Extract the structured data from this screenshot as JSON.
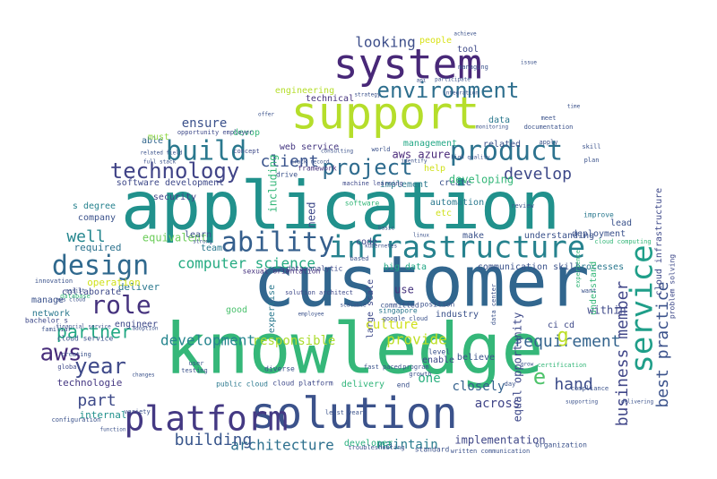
{
  "palette": {
    "background": "#ffffff",
    "colors": [
      "#440154",
      "#46327e",
      "#365c8d",
      "#277f8e",
      "#1fa187",
      "#4ac16d",
      "#a0da39",
      "#fde725"
    ]
  },
  "words": [
    {
      "text": "customer",
      "color": "#31668e",
      "rotate": 0
    },
    {
      "text": "knowledge",
      "color": "#35b779",
      "rotate": 0
    },
    {
      "text": "application",
      "color": "#21918c",
      "rotate": 0
    },
    {
      "text": "support",
      "color": "#b5de2b",
      "rotate": 0
    },
    {
      "text": "solution",
      "color": "#3b528b",
      "rotate": 0
    },
    {
      "text": "system",
      "color": "#482878",
      "rotate": 0
    },
    {
      "text": "platform",
      "color": "#443983",
      "rotate": 0
    },
    {
      "text": "infrastructure",
      "color": "#26828e",
      "rotate": 0
    },
    {
      "text": "service",
      "color": "#1f9e89",
      "rotate": -90
    },
    {
      "text": "build",
      "color": "#2a788e",
      "rotate": 0
    },
    {
      "text": "product",
      "color": "#2c728e",
      "rotate": 0
    },
    {
      "text": "design",
      "color": "#30698e",
      "rotate": 0
    },
    {
      "text": "ability",
      "color": "#355f8d",
      "rotate": 0
    },
    {
      "text": "role",
      "color": "#46337e",
      "rotate": 0
    },
    {
      "text": "technology",
      "color": "#414487",
      "rotate": 0
    },
    {
      "text": "environment",
      "color": "#2e6f8e",
      "rotate": 0
    },
    {
      "text": "project",
      "color": "#2f6c8e",
      "rotate": 0
    },
    {
      "text": "aws",
      "color": "#472c7a",
      "rotate": 0
    },
    {
      "text": "year",
      "color": "#3e4989",
      "rotate": 0
    },
    {
      "text": "business member",
      "color": "#404688",
      "rotate": -90
    },
    {
      "text": "best practice",
      "color": "#3b528b",
      "rotate": -90
    },
    {
      "text": "partner",
      "color": "#22a884",
      "rotate": 0
    },
    {
      "text": "development",
      "color": "#25858e",
      "rotate": 0
    },
    {
      "text": "architecture",
      "color": "#2d708e",
      "rotate": 0
    },
    {
      "text": "building",
      "color": "#39568c",
      "rotate": 0
    },
    {
      "text": "requirement",
      "color": "#33638d",
      "rotate": 0
    },
    {
      "text": "develop",
      "color": "#3e4989",
      "rotate": 0
    },
    {
      "text": "computer science",
      "color": "#25ab82",
      "rotate": 0
    },
    {
      "text": "provide",
      "color": "#bddf26",
      "rotate": 0
    },
    {
      "text": "responsible",
      "color": "#addc30",
      "rotate": 0
    },
    {
      "text": "looking",
      "color": "#3d4e8a",
      "rotate": 0
    },
    {
      "text": "hand",
      "color": "#3d4d8a",
      "rotate": 0
    },
    {
      "text": "well",
      "color": "#24868e",
      "rotate": 0
    },
    {
      "text": "part",
      "color": "#3e4a89",
      "rotate": 0
    },
    {
      "text": "client",
      "color": "#3a548c",
      "rotate": 0
    },
    {
      "text": "ensure",
      "color": "#3b518b",
      "rotate": 0
    },
    {
      "text": "one",
      "color": "#2ab07f",
      "rotate": 0
    },
    {
      "text": "e",
      "color": "#4ec36b",
      "rotate": 0
    },
    {
      "text": "g",
      "color": "#bddf26",
      "rotate": 0
    },
    {
      "text": "aws azure",
      "color": "#482878",
      "rotate": 0
    },
    {
      "text": "web service",
      "color": "#453781",
      "rotate": 0
    },
    {
      "text": "management",
      "color": "#22a785",
      "rotate": 0
    },
    {
      "text": "closely",
      "color": "#34618d",
      "rotate": 0
    },
    {
      "text": "across",
      "color": "#404588",
      "rotate": 0
    },
    {
      "text": "implementation",
      "color": "#3f4788",
      "rotate": 0
    },
    {
      "text": "maintain",
      "color": "#287c8e",
      "rotate": 0
    },
    {
      "text": "developer",
      "color": "#2ab07f",
      "rotate": 0
    },
    {
      "text": "delivery",
      "color": "#31b57b",
      "rotate": 0
    },
    {
      "text": "cloud platform",
      "color": "#3e4989",
      "rotate": 0
    },
    {
      "text": "public cloud",
      "color": "#2a788e",
      "rotate": 0
    },
    {
      "text": "technologie",
      "color": "#453882",
      "rotate": 0
    },
    {
      "text": "internal",
      "color": "#21918c",
      "rotate": 0
    },
    {
      "text": "deliver",
      "color": "#2a788e",
      "rotate": 0
    },
    {
      "text": "operation",
      "color": "#d0e11c",
      "rotate": 0
    },
    {
      "text": "required",
      "color": "#2c728e",
      "rotate": 0
    },
    {
      "text": "company",
      "color": "#3b528b",
      "rotate": 0
    },
    {
      "text": "s degree",
      "color": "#26828e",
      "rotate": 0
    },
    {
      "text": "equivalent",
      "color": "#6ccd5a",
      "rotate": 0
    },
    {
      "text": "software development",
      "color": "#3e4989",
      "rotate": 0
    },
    {
      "text": "security",
      "color": "#404588",
      "rotate": 0
    },
    {
      "text": "able",
      "color": "#31668e",
      "rotate": 0
    },
    {
      "text": "must",
      "color": "#90d743",
      "rotate": 0
    },
    {
      "text": "devop",
      "color": "#35b779",
      "rotate": 0
    },
    {
      "text": "engineering",
      "color": "#b5de2b",
      "rotate": 0
    },
    {
      "text": "technical",
      "color": "#46337e",
      "rotate": 0
    },
    {
      "text": "people",
      "color": "#d8e219",
      "rotate": 0
    },
    {
      "text": "tool",
      "color": "#3e4a89",
      "rotate": 0
    },
    {
      "text": "data",
      "color": "#2a788e",
      "rotate": 0
    },
    {
      "text": "related",
      "color": "#3b528b",
      "rotate": 0
    },
    {
      "text": "help",
      "color": "#d0e11c",
      "rotate": 0
    },
    {
      "text": "create",
      "color": "#3b528b",
      "rotate": 0
    },
    {
      "text": "developing",
      "color": "#35b779",
      "rotate": 0
    },
    {
      "text": "automation",
      "color": "#2a788e",
      "rotate": 0
    },
    {
      "text": "implement",
      "color": "#2a788e",
      "rotate": 0
    },
    {
      "text": "etc",
      "color": "#d0e11c",
      "rotate": 0
    },
    {
      "text": "make",
      "color": "#3b528b",
      "rotate": 0
    },
    {
      "text": "understanding",
      "color": "#3b528b",
      "rotate": 0
    },
    {
      "text": "deployment",
      "color": "#3b528b",
      "rotate": 0
    },
    {
      "text": "lead",
      "color": "#3b528b",
      "rotate": 0
    },
    {
      "text": "improve",
      "color": "#2a788e",
      "rotate": 0
    },
    {
      "text": "communication skill",
      "color": "#3b528b",
      "rotate": 0
    },
    {
      "text": "processes",
      "color": "#2a788e",
      "rotate": 0
    },
    {
      "text": "big data",
      "color": "#22a785",
      "rotate": 0
    },
    {
      "text": "use",
      "color": "#46337e",
      "rotate": 0
    },
    {
      "text": "industry",
      "color": "#3b528b",
      "rotate": 0
    },
    {
      "text": "within",
      "color": "#3e4989",
      "rotate": 0
    },
    {
      "text": "engineer",
      "color": "#3e4989",
      "rotate": 0
    },
    {
      "text": "good",
      "color": "#4ac16d",
      "rotate": 0
    },
    {
      "text": "collaborate",
      "color": "#3e4989",
      "rotate": 0
    },
    {
      "text": "network",
      "color": "#2a788e",
      "rotate": 0
    },
    {
      "text": "manage",
      "color": "#3b528b",
      "rotate": 0
    },
    {
      "text": "learn",
      "color": "#3b528b",
      "rotate": 0
    },
    {
      "text": "team",
      "color": "#2a788e",
      "rotate": 0
    },
    {
      "text": "data analytic",
      "color": "#3e4989",
      "rotate": 0
    },
    {
      "text": "expertise",
      "color": "#2a788e",
      "rotate": -90
    },
    {
      "text": "including",
      "color": "#35b779",
      "rotate": -90
    },
    {
      "text": "need",
      "color": "#3e4989",
      "rotate": -90
    },
    {
      "text": "code",
      "color": "#3e4989",
      "rotate": 0
    },
    {
      "text": "framework",
      "color": "#46337e",
      "rotate": 0
    },
    {
      "text": "drive",
      "color": "#3b528b",
      "rotate": 0
    },
    {
      "text": "concept",
      "color": "#3e4989",
      "rotate": 0
    },
    {
      "text": "cloud service",
      "color": "#3b528b",
      "rotate": 0
    },
    {
      "text": "equal opportunity",
      "color": "#3e4989",
      "rotate": -90
    },
    {
      "text": "ci cd",
      "color": "#3e4989",
      "rotate": 0
    },
    {
      "text": "understand",
      "color": "#35b779",
      "rotate": -90
    },
    {
      "text": "large scale",
      "color": "#3e4989",
      "rotate": -90
    },
    {
      "text": "believe",
      "color": "#3b528b",
      "rotate": 0
    },
    {
      "text": "enable",
      "color": "#3e4989",
      "rotate": 0
    },
    {
      "text": "end",
      "color": "#3b528b",
      "rotate": 0
    },
    {
      "text": "culture",
      "color": "#d0e11c",
      "rotate": 0
    },
    {
      "text": "committed",
      "color": "#3b528b",
      "rotate": 0
    },
    {
      "text": "singapore",
      "color": "#2a788e",
      "rotate": 0
    },
    {
      "text": "opportunity employer",
      "color": "#3e4989",
      "rotate": 0
    },
    {
      "text": "sexual orientation",
      "color": "#46337e",
      "rotate": 0
    },
    {
      "text": "solution architect",
      "color": "#3e4989",
      "rotate": 0
    },
    {
      "text": "machine learning",
      "color": "#3e4989",
      "rotate": 0
    },
    {
      "text": "cloud infrastructure",
      "color": "#3e4989",
      "rotate": -90
    },
    {
      "text": "problem solving",
      "color": "#3e4989",
      "rotate": -90
    },
    {
      "text": "experience",
      "color": "#35b779",
      "rotate": -90
    },
    {
      "text": "software",
      "color": "#35b779",
      "rotate": 0
    },
    {
      "text": "position",
      "color": "#3b528b",
      "rotate": 0
    },
    {
      "text": "level",
      "color": "#3b528b",
      "rotate": 0
    },
    {
      "text": "creating",
      "color": "#3b528b",
      "rotate": 0
    },
    {
      "text": "global",
      "color": "#3e4989",
      "rotate": 0
    },
    {
      "text": "database",
      "color": "#35b779",
      "rotate": 0
    },
    {
      "text": "innovation",
      "color": "#3b528b",
      "rotate": 0
    },
    {
      "text": "financial service",
      "color": "#3b528b",
      "rotate": 0
    },
    {
      "text": "bachelor s",
      "color": "#3e4989",
      "rotate": 0
    },
    {
      "text": "familiar",
      "color": "#3b528b",
      "rotate": 0
    },
    {
      "text": "configuration",
      "color": "#3b528b",
      "rotate": 0
    },
    {
      "text": "variety",
      "color": "#3b528b",
      "rotate": 0
    },
    {
      "text": "testing",
      "color": "#3b528b",
      "rotate": 0
    },
    {
      "text": "user",
      "color": "#3b528b",
      "rotate": 0
    },
    {
      "text": "diverse",
      "color": "#3b528b",
      "rotate": 0
    },
    {
      "text": "least year",
      "color": "#3b528b",
      "rotate": 0
    },
    {
      "text": "fast paced",
      "color": "#3b528b",
      "rotate": 0
    },
    {
      "text": "program",
      "color": "#3b528b",
      "rotate": 0
    },
    {
      "text": "growth",
      "color": "#3b528b",
      "rotate": 0
    },
    {
      "text": "compliance",
      "color": "#3b528b",
      "rotate": 0
    },
    {
      "text": "certification",
      "color": "#35b779",
      "rotate": 0
    },
    {
      "text": "day",
      "color": "#3b528b",
      "rotate": 0
    },
    {
      "text": "organization",
      "color": "#3b528b",
      "rotate": 0
    },
    {
      "text": "written communication",
      "color": "#3b528b",
      "rotate": 0
    },
    {
      "text": "standard",
      "color": "#3b528b",
      "rotate": 0
    },
    {
      "text": "troubleshooting",
      "color": "#3b528b",
      "rotate": 0
    },
    {
      "text": "google cloud",
      "color": "#3b528b",
      "rotate": 0
    },
    {
      "text": "data center",
      "color": "#3b528b",
      "rotate": -90
    },
    {
      "text": "review",
      "color": "#3b528b",
      "rotate": 0
    },
    {
      "text": "want",
      "color": "#3b528b",
      "rotate": 0
    },
    {
      "text": "cloud computing",
      "color": "#35b779",
      "rotate": 0
    },
    {
      "text": "documentation",
      "color": "#3b528b",
      "rotate": 0
    },
    {
      "text": "meet",
      "color": "#3b528b",
      "rotate": 0
    },
    {
      "text": "apply",
      "color": "#3b528b",
      "rotate": 0
    },
    {
      "text": "skill",
      "color": "#3b528b",
      "rotate": 0
    },
    {
      "text": "plan",
      "color": "#3b528b",
      "rotate": 0
    },
    {
      "text": "managing",
      "color": "#3b528b",
      "rotate": 0
    },
    {
      "text": "achieve",
      "color": "#3b528b",
      "rotate": 0
    },
    {
      "text": "integration",
      "color": "#3b528b",
      "rotate": 0
    },
    {
      "text": "participate",
      "color": "#3b528b",
      "rotate": 0
    },
    {
      "text": "strategy",
      "color": "#3b528b",
      "rotate": 0
    },
    {
      "text": "monitoring",
      "color": "#3b528b",
      "rotate": 0
    },
    {
      "text": "high quality",
      "color": "#3b528b",
      "rotate": 0
    },
    {
      "text": "world",
      "color": "#3b528b",
      "rotate": 0
    },
    {
      "text": "identify",
      "color": "#3b528b",
      "rotate": 0
    },
    {
      "text": "consulting",
      "color": "#3b528b",
      "rotate": 0
    },
    {
      "text": "offer",
      "color": "#3b528b",
      "rotate": 0
    },
    {
      "text": "related field",
      "color": "#3b528b",
      "rotate": 0
    },
    {
      "text": "full stack",
      "color": "#3b528b",
      "rotate": 0
    },
    {
      "text": "track record",
      "color": "#3b528b",
      "rotate": 0
    },
    {
      "text": "linux",
      "color": "#3b528b",
      "rotate": 0
    },
    {
      "text": "kubernetes",
      "color": "#3b528b",
      "rotate": 0
    },
    {
      "text": "api",
      "color": "#3b528b",
      "rotate": 0
    },
    {
      "text": "basic",
      "color": "#3b528b",
      "rotate": 0
    },
    {
      "text": "supporting",
      "color": "#3b528b",
      "rotate": 0
    },
    {
      "text": "delivering",
      "color": "#3b528b",
      "rotate": 0
    },
    {
      "text": "function",
      "color": "#3b528b",
      "rotate": 0
    },
    {
      "text": "changes",
      "color": "#3b528b",
      "rotate": 0
    },
    {
      "text": "strong",
      "color": "#3b528b",
      "rotate": 0
    },
    {
      "text": "adoption",
      "color": "#3b528b",
      "rotate": 0
    },
    {
      "text": "employee",
      "color": "#3b528b",
      "rotate": 0
    },
    {
      "text": "scalable",
      "color": "#3b528b",
      "rotate": 0
    },
    {
      "text": "based",
      "color": "#3b528b",
      "rotate": 0
    },
    {
      "text": "aws cloud",
      "color": "#3b528b",
      "rotate": 0
    },
    {
      "text": "assist",
      "color": "#3b528b",
      "rotate": 0
    },
    {
      "text": "grow",
      "color": "#3b528b",
      "rotate": 0
    },
    {
      "text": "issue",
      "color": "#3b528b",
      "rotate": 0
    },
    {
      "text": "time",
      "color": "#3b528b",
      "rotate": 0
    }
  ]
}
